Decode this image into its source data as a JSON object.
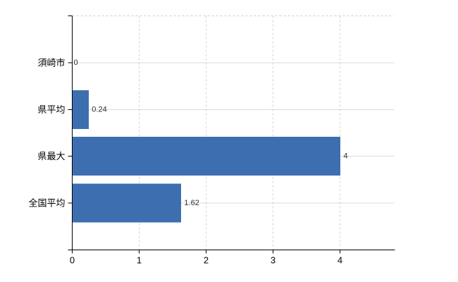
{
  "chart_data": {
    "type": "bar",
    "orientation": "horizontal",
    "title": "",
    "xlabel": "",
    "ylabel": "",
    "categories": [
      "須崎市",
      "県平均",
      "県最大",
      "全国平均"
    ],
    "values": [
      0,
      0.24,
      4,
      1.62
    ],
    "value_labels": [
      "0",
      "0.24",
      "4",
      "1.62"
    ],
    "x_tick_labels": [
      "0",
      "1",
      "2",
      "3",
      "4"
    ],
    "x_ticks": [
      0,
      1,
      2,
      3,
      4
    ],
    "xlim": [
      0,
      4.81
    ],
    "grid": true,
    "legend": false,
    "bar_color": "#3d6fb0",
    "axis_color": "#000000",
    "label_color": "#000000",
    "value_label_color": "#2e2e2e",
    "hgrid_color": "#d9ded9",
    "vgrid_color": "#d4d1d4",
    "top_border_color": "#cfcccf",
    "background_color": "#ffffff"
  }
}
